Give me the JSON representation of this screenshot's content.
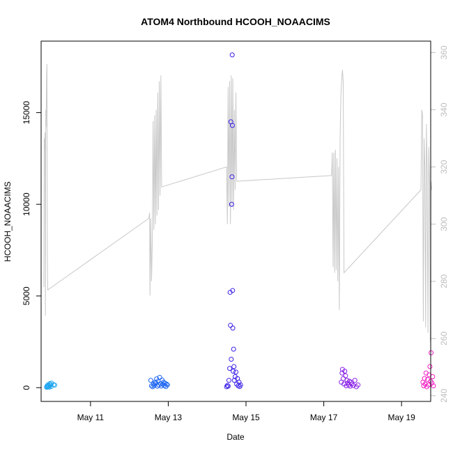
{
  "chart_data": {
    "type": "scatter",
    "title": "ATOM4 Northbound HCOOH_NOAACIMS",
    "xlabel": "Date",
    "ylabel": "HCOOH_NOAACIMS",
    "x_ticks": [
      "May 11",
      "May 13",
      "May 15",
      "May 17",
      "May 19"
    ],
    "x_tick_days": [
      11,
      13,
      15,
      17,
      19
    ],
    "xlim": [
      9.73,
      19.75
    ],
    "ylim": [
      -750,
      18900
    ],
    "y_ticks": [
      0,
      5000,
      10000,
      15000
    ],
    "y2_ticks": [
      240,
      260,
      280,
      300,
      320,
      340,
      360
    ],
    "y2lim": [
      238,
      364
    ],
    "line_color": "#c8c8c8",
    "color_by_date": [
      "#1ea5f0",
      "#1f66f2",
      "#3a20e8",
      "#8a22e6",
      "#f21ec3"
    ],
    "series": [
      {
        "type": "scatter",
        "points": [
          {
            "x": 9.87,
            "y": 20
          },
          {
            "x": 9.88,
            "y": 80
          },
          {
            "x": 9.89,
            "y": 40
          },
          {
            "x": 9.9,
            "y": 150
          },
          {
            "x": 9.91,
            "y": 60
          },
          {
            "x": 9.92,
            "y": 100
          },
          {
            "x": 9.94,
            "y": 30
          },
          {
            "x": 9.95,
            "y": 220
          },
          {
            "x": 9.96,
            "y": 120
          },
          {
            "x": 9.97,
            "y": 180
          },
          {
            "x": 9.99,
            "y": 60
          },
          {
            "x": 10.0,
            "y": 250
          },
          {
            "x": 10.05,
            "y": 160
          },
          {
            "x": 10.08,
            "y": 140
          },
          {
            "x": 12.55,
            "y": 400
          },
          {
            "x": 12.57,
            "y": 100
          },
          {
            "x": 12.6,
            "y": 50
          },
          {
            "x": 12.62,
            "y": 200
          },
          {
            "x": 12.64,
            "y": 120
          },
          {
            "x": 12.66,
            "y": 300
          },
          {
            "x": 12.68,
            "y": 250
          },
          {
            "x": 12.7,
            "y": 480
          },
          {
            "x": 12.72,
            "y": 80
          },
          {
            "x": 12.74,
            "y": 350
          },
          {
            "x": 12.76,
            "y": 150
          },
          {
            "x": 12.78,
            "y": 560
          },
          {
            "x": 12.8,
            "y": 220
          },
          {
            "x": 12.82,
            "y": 90
          },
          {
            "x": 12.84,
            "y": 420
          },
          {
            "x": 12.86,
            "y": 180
          },
          {
            "x": 12.88,
            "y": 300
          },
          {
            "x": 12.9,
            "y": 110
          },
          {
            "x": 12.92,
            "y": 240
          },
          {
            "x": 12.94,
            "y": 60
          },
          {
            "x": 12.96,
            "y": 190
          },
          {
            "x": 12.98,
            "y": 150
          },
          {
            "x": 14.5,
            "y": 50
          },
          {
            "x": 14.52,
            "y": 120
          },
          {
            "x": 14.54,
            "y": 80
          },
          {
            "x": 14.56,
            "y": 400
          },
          {
            "x": 14.58,
            "y": 1050
          },
          {
            "x": 14.59,
            "y": 5200
          },
          {
            "x": 14.6,
            "y": 3400
          },
          {
            "x": 14.61,
            "y": 14500
          },
          {
            "x": 14.62,
            "y": 1550
          },
          {
            "x": 14.63,
            "y": 10000
          },
          {
            "x": 14.64,
            "y": 11500
          },
          {
            "x": 14.645,
            "y": 18150
          },
          {
            "x": 14.65,
            "y": 14300
          },
          {
            "x": 14.655,
            "y": 5300
          },
          {
            "x": 14.66,
            "y": 3250
          },
          {
            "x": 14.67,
            "y": 900
          },
          {
            "x": 14.68,
            "y": 2100
          },
          {
            "x": 14.69,
            "y": 1150
          },
          {
            "x": 14.7,
            "y": 400
          },
          {
            "x": 14.72,
            "y": 600
          },
          {
            "x": 14.74,
            "y": 850
          },
          {
            "x": 14.76,
            "y": 200
          },
          {
            "x": 14.78,
            "y": 500
          },
          {
            "x": 14.8,
            "y": 100
          },
          {
            "x": 14.82,
            "y": 300
          },
          {
            "x": 14.84,
            "y": 60
          },
          {
            "x": 14.86,
            "y": 150
          },
          {
            "x": 17.45,
            "y": 300
          },
          {
            "x": 17.47,
            "y": 800
          },
          {
            "x": 17.48,
            "y": 1000
          },
          {
            "x": 17.5,
            "y": 500
          },
          {
            "x": 17.52,
            "y": 200
          },
          {
            "x": 17.54,
            "y": 900
          },
          {
            "x": 17.56,
            "y": 650
          },
          {
            "x": 17.58,
            "y": 100
          },
          {
            "x": 17.6,
            "y": 400
          },
          {
            "x": 17.62,
            "y": 250
          },
          {
            "x": 17.64,
            "y": 150
          },
          {
            "x": 17.66,
            "y": 350
          },
          {
            "x": 17.68,
            "y": 80
          },
          {
            "x": 17.7,
            "y": 300
          },
          {
            "x": 17.72,
            "y": 200
          },
          {
            "x": 17.76,
            "y": 120
          },
          {
            "x": 17.8,
            "y": 400
          },
          {
            "x": 17.84,
            "y": 50
          },
          {
            "x": 17.88,
            "y": 150
          },
          {
            "x": 19.55,
            "y": 300
          },
          {
            "x": 19.57,
            "y": 100
          },
          {
            "x": 19.59,
            "y": 500
          },
          {
            "x": 19.61,
            "y": 200
          },
          {
            "x": 19.63,
            "y": 800
          },
          {
            "x": 19.65,
            "y": 50
          },
          {
            "x": 19.67,
            "y": 450
          },
          {
            "x": 19.69,
            "y": 150
          },
          {
            "x": 19.71,
            "y": 700
          },
          {
            "x": 19.73,
            "y": 1150
          },
          {
            "x": 19.75,
            "y": 350
          },
          {
            "x": 19.76,
            "y": 1900
          },
          {
            "x": 19.78,
            "y": 250
          },
          {
            "x": 19.8,
            "y": 600
          },
          {
            "x": 19.82,
            "y": 100
          }
        ]
      },
      {
        "type": "line",
        "axis": "right",
        "points": [
          {
            "x": 9.8,
            "y": 278
          },
          {
            "x": 9.81,
            "y": 330
          },
          {
            "x": 9.82,
            "y": 326
          },
          {
            "x": 9.83,
            "y": 332
          },
          {
            "x": 9.84,
            "y": 268
          },
          {
            "x": 9.85,
            "y": 340
          },
          {
            "x": 9.86,
            "y": 334
          },
          {
            "x": 9.87,
            "y": 352
          },
          {
            "x": 9.88,
            "y": 356
          },
          {
            "x": 9.89,
            "y": 290
          },
          {
            "x": 9.9,
            "y": 277
          },
          {
            "x": 12.5,
            "y": 302
          },
          {
            "x": 12.52,
            "y": 304
          },
          {
            "x": 12.53,
            "y": 275
          },
          {
            "x": 12.55,
            "y": 302
          },
          {
            "x": 12.57,
            "y": 280
          },
          {
            "x": 12.59,
            "y": 294
          },
          {
            "x": 12.61,
            "y": 336
          },
          {
            "x": 12.63,
            "y": 298
          },
          {
            "x": 12.65,
            "y": 338
          },
          {
            "x": 12.67,
            "y": 300
          },
          {
            "x": 12.69,
            "y": 340
          },
          {
            "x": 12.71,
            "y": 303
          },
          {
            "x": 12.73,
            "y": 346
          },
          {
            "x": 12.75,
            "y": 305
          },
          {
            "x": 12.77,
            "y": 350
          },
          {
            "x": 12.79,
            "y": 310
          },
          {
            "x": 12.81,
            "y": 352
          },
          {
            "x": 12.83,
            "y": 313
          },
          {
            "x": 14.5,
            "y": 320
          },
          {
            "x": 14.52,
            "y": 300
          },
          {
            "x": 14.54,
            "y": 348
          },
          {
            "x": 14.56,
            "y": 306
          },
          {
            "x": 14.58,
            "y": 350
          },
          {
            "x": 14.6,
            "y": 300
          },
          {
            "x": 14.62,
            "y": 352
          },
          {
            "x": 14.64,
            "y": 306
          },
          {
            "x": 14.66,
            "y": 351
          },
          {
            "x": 14.68,
            "y": 305
          },
          {
            "x": 14.7,
            "y": 340
          },
          {
            "x": 14.72,
            "y": 312
          },
          {
            "x": 14.74,
            "y": 346
          },
          {
            "x": 14.76,
            "y": 315
          },
          {
            "x": 17.2,
            "y": 317
          },
          {
            "x": 17.22,
            "y": 325
          },
          {
            "x": 17.24,
            "y": 285
          },
          {
            "x": 17.26,
            "y": 325
          },
          {
            "x": 17.28,
            "y": 283
          },
          {
            "x": 17.3,
            "y": 326
          },
          {
            "x": 17.32,
            "y": 284
          },
          {
            "x": 17.34,
            "y": 323
          },
          {
            "x": 17.36,
            "y": 280
          },
          {
            "x": 17.38,
            "y": 320
          },
          {
            "x": 17.4,
            "y": 270
          },
          {
            "x": 17.42,
            "y": 330
          },
          {
            "x": 17.44,
            "y": 345
          },
          {
            "x": 17.46,
            "y": 350
          },
          {
            "x": 17.48,
            "y": 354
          },
          {
            "x": 17.5,
            "y": 350
          },
          {
            "x": 17.52,
            "y": 283
          },
          {
            "x": 19.5,
            "y": 312
          },
          {
            "x": 19.52,
            "y": 340
          },
          {
            "x": 19.54,
            "y": 338
          },
          {
            "x": 19.56,
            "y": 266
          },
          {
            "x": 19.58,
            "y": 330
          },
          {
            "x": 19.6,
            "y": 320
          },
          {
            "x": 19.62,
            "y": 264
          },
          {
            "x": 19.64,
            "y": 335
          },
          {
            "x": 19.66,
            "y": 318
          },
          {
            "x": 19.68,
            "y": 262
          },
          {
            "x": 19.7,
            "y": 327
          },
          {
            "x": 19.72,
            "y": 314
          },
          {
            "x": 19.74,
            "y": 259
          },
          {
            "x": 19.76,
            "y": 315
          },
          {
            "x": 19.78,
            "y": 312
          }
        ]
      }
    ]
  }
}
